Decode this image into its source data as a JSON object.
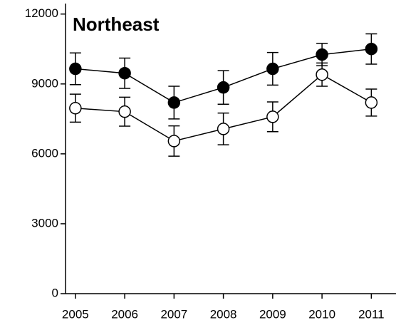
{
  "chart_data": {
    "type": "line",
    "title": "Northeast",
    "x": [
      2005,
      2006,
      2007,
      2008,
      2009,
      2010,
      2011
    ],
    "series": [
      {
        "color": "#000000",
        "values": [
          9650,
          9460,
          8200,
          8850,
          9650,
          10260,
          10500
        ],
        "errors": [
          680,
          650,
          700,
          720,
          700,
          480,
          650
        ]
      },
      {
        "color": "#ffffff",
        "values": [
          7960,
          7810,
          6550,
          7070,
          7590,
          9400,
          8200
        ],
        "errors": [
          600,
          620,
          650,
          680,
          640,
          500,
          580
        ]
      }
    ],
    "xlim": [
      2004.8,
      2011.5
    ],
    "xticks": [
      2005,
      2006,
      2007,
      2008,
      2009,
      2010,
      2011
    ],
    "ylim": [
      0,
      12450
    ],
    "yticks": [
      0,
      3000,
      6000,
      9000,
      12000
    ],
    "grid": false
  }
}
